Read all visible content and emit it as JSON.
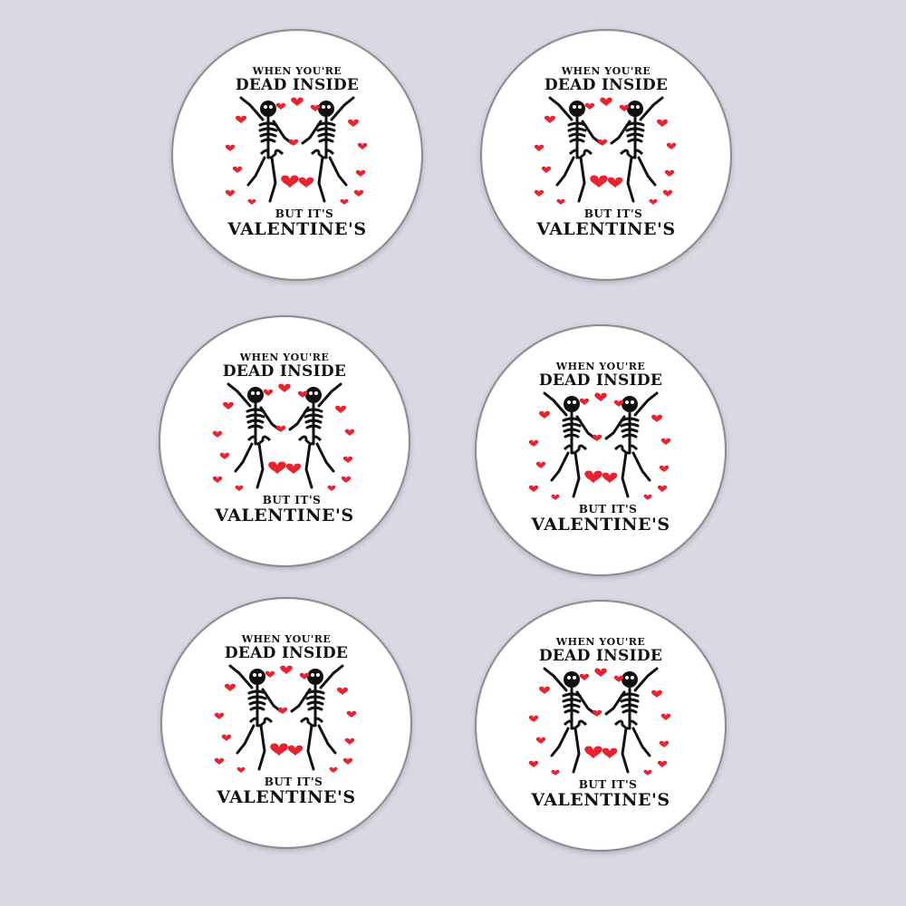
{
  "colors": {
    "background": "#d9d8e3",
    "coaster": "#ffffff",
    "heart": "#e8222f",
    "skeleton": "#111111"
  },
  "coasters": [
    {
      "line1": "WHEN YOU'RE",
      "line2": "DEAD INSIDE",
      "line3": "BUT IT'S",
      "line4": "VALENTINE'S"
    },
    {
      "line1": "WHEN YOU'RE",
      "line2": "DEAD INSIDE",
      "line3": "BUT IT'S",
      "line4": "VALENTINE'S"
    },
    {
      "line1": "WHEN YOU'RE",
      "line2": "DEAD INSIDE",
      "line3": "BUT IT'S",
      "line4": "VALENTINE'S"
    },
    {
      "line1": "WHEN YOU'RE",
      "line2": "DEAD INSIDE",
      "line3": "BUT IT'S",
      "line4": "VALENTINE'S"
    },
    {
      "line1": "WHEN YOU'RE",
      "line2": "DEAD INSIDE",
      "line3": "BUT IT'S",
      "line4": "VALENTINE'S"
    },
    {
      "line1": "WHEN YOU'RE",
      "line2": "DEAD INSIDE",
      "line3": "BUT IT'S",
      "line4": "VALENTINE'S"
    }
  ]
}
